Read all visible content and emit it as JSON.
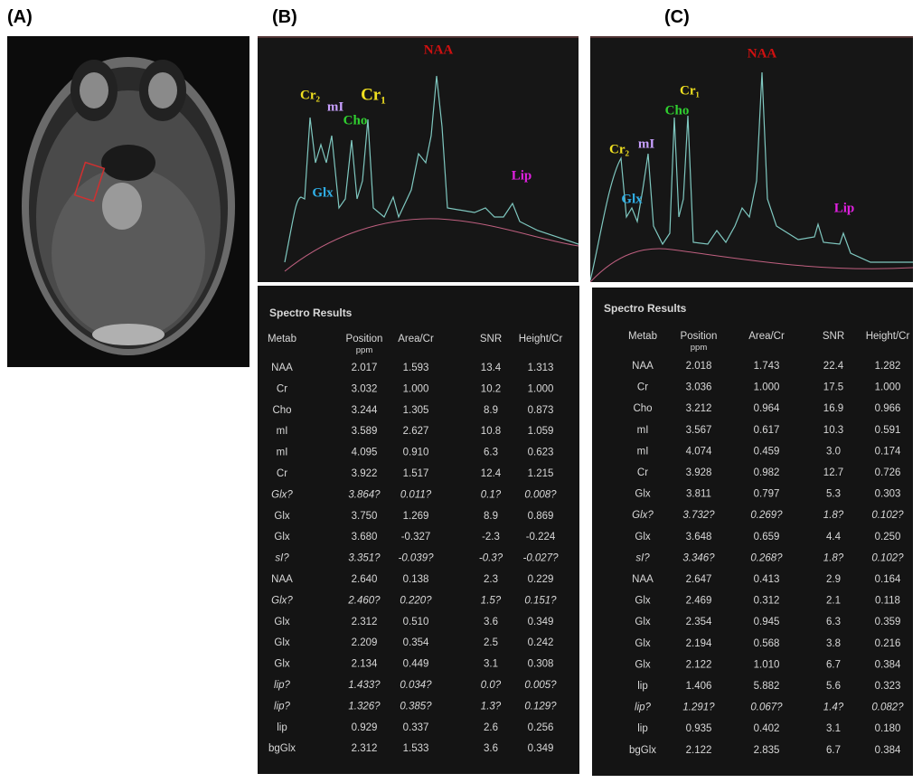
{
  "panels": {
    "A": {
      "label": "(A)"
    },
    "B": {
      "label": "(B)",
      "peaks": [
        {
          "text": "NAA",
          "color": "#d01010"
        },
        {
          "text": "Cr₂",
          "color": "#f0e020"
        },
        {
          "text": "mI",
          "color": "#c8a0ff"
        },
        {
          "text": "Cr₁",
          "color": "#f0e020"
        },
        {
          "text": "Cho",
          "color": "#30d030"
        },
        {
          "text": "Glx",
          "color": "#30b0e8"
        },
        {
          "text": "Lip",
          "color": "#e020e0"
        }
      ],
      "table": {
        "title": "Spectro Results",
        "header": [
          "Metab",
          "Position ppm",
          "Area/Cr",
          "SNR",
          "Height/Cr"
        ],
        "rows": [
          [
            "NAA",
            "2.017",
            "1.593",
            "13.4",
            "1.313"
          ],
          [
            "Cr",
            "3.032",
            "1.000",
            "10.2",
            "1.000"
          ],
          [
            "Cho",
            "3.244",
            "1.305",
            "8.9",
            "0.873"
          ],
          [
            "mI",
            "3.589",
            "2.627",
            "10.8",
            "1.059"
          ],
          [
            "mI",
            "4.095",
            "0.910",
            "6.3",
            "0.623"
          ],
          [
            "Cr",
            "3.922",
            "1.517",
            "12.4",
            "1.215"
          ],
          [
            "Glx?",
            "3.864?",
            "0.011?",
            "0.1?",
            "0.008?"
          ],
          [
            "Glx",
            "3.750",
            "1.269",
            "8.9",
            "0.869"
          ],
          [
            "Glx",
            "3.680",
            "-0.327",
            "-2.3",
            "-0.224"
          ],
          [
            "sI?",
            "3.351?",
            "-0.039?",
            "-0.3?",
            "-0.027?"
          ],
          [
            "NAA",
            "2.640",
            "0.138",
            "2.3",
            "0.229"
          ],
          [
            "Glx?",
            "2.460?",
            "0.220?",
            "1.5?",
            "0.151?"
          ],
          [
            "Glx",
            "2.312",
            "0.510",
            "3.6",
            "0.349"
          ],
          [
            "Glx",
            "2.209",
            "0.354",
            "2.5",
            "0.242"
          ],
          [
            "Glx",
            "2.134",
            "0.449",
            "3.1",
            "0.308"
          ],
          [
            "lip?",
            "1.433?",
            "0.034?",
            "0.0?",
            "0.005?"
          ],
          [
            "lip?",
            "1.326?",
            "0.385?",
            "1.3?",
            "0.129?"
          ],
          [
            "lip",
            "0.929",
            "0.337",
            "2.6",
            "0.256"
          ],
          [
            "bgGlx",
            "2.312",
            "1.533",
            "3.6",
            "0.349"
          ]
        ]
      }
    },
    "C": {
      "label": "(C)",
      "peaks": [
        {
          "text": "NAA",
          "color": "#d01010"
        },
        {
          "text": "Cr₁",
          "color": "#f0e020"
        },
        {
          "text": "Cho",
          "color": "#30d030"
        },
        {
          "text": "mI",
          "color": "#c8a0ff"
        },
        {
          "text": "Cr₂",
          "color": "#f0e020"
        },
        {
          "text": "Glx",
          "color": "#30b0e8"
        },
        {
          "text": "Lip",
          "color": "#e020e0"
        }
      ],
      "table": {
        "title": "Spectro Results",
        "header": [
          "Metab",
          "Position ppm",
          "Area/Cr",
          "SNR",
          "Height/Cr"
        ],
        "rows": [
          [
            "NAA",
            "2.018",
            "1.743",
            "22.4",
            "1.282"
          ],
          [
            "Cr",
            "3.036",
            "1.000",
            "17.5",
            "1.000"
          ],
          [
            "Cho",
            "3.212",
            "0.964",
            "16.9",
            "0.966"
          ],
          [
            "mI",
            "3.567",
            "0.617",
            "10.3",
            "0.591"
          ],
          [
            "mI",
            "4.074",
            "0.459",
            "3.0",
            "0.174"
          ],
          [
            "Cr",
            "3.928",
            "0.982",
            "12.7",
            "0.726"
          ],
          [
            "Glx",
            "3.811",
            "0.797",
            "5.3",
            "0.303"
          ],
          [
            "Glx?",
            "3.732?",
            "0.269?",
            "1.8?",
            "0.102?"
          ],
          [
            "Glx",
            "3.648",
            "0.659",
            "4.4",
            "0.250"
          ],
          [
            "sI?",
            "3.346?",
            "0.268?",
            "1.8?",
            "0.102?"
          ],
          [
            "NAA",
            "2.647",
            "0.413",
            "2.9",
            "0.164"
          ],
          [
            "Glx",
            "2.469",
            "0.312",
            "2.1",
            "0.118"
          ],
          [
            "Glx",
            "2.354",
            "0.945",
            "6.3",
            "0.359"
          ],
          [
            "Glx",
            "2.194",
            "0.568",
            "3.8",
            "0.216"
          ],
          [
            "Glx",
            "2.122",
            "1.010",
            "6.7",
            "0.384"
          ],
          [
            "lip",
            "1.406",
            "5.882",
            "5.6",
            "0.323"
          ],
          [
            "lip?",
            "1.291?",
            "0.067?",
            "1.4?",
            "0.082?"
          ],
          [
            "lip",
            "0.935",
            "0.402",
            "3.1",
            "0.180"
          ],
          [
            "bgGlx",
            "2.122",
            "2.835",
            "6.7",
            "0.384"
          ]
        ]
      }
    }
  }
}
